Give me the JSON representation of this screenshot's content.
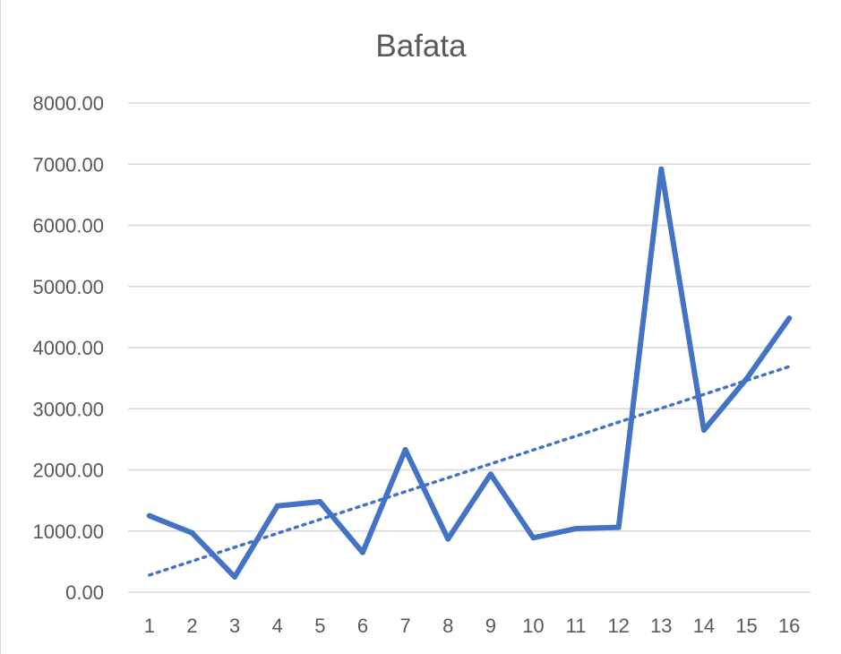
{
  "chart_data": {
    "type": "line",
    "title": "Bafata",
    "xlabel": "",
    "ylabel": "",
    "categories": [
      "1",
      "2",
      "3",
      "4",
      "5",
      "6",
      "7",
      "8",
      "9",
      "10",
      "11",
      "12",
      "13",
      "14",
      "15",
      "16"
    ],
    "series": [
      {
        "values": [
          1250,
          970,
          250,
          1410,
          1480,
          650,
          2330,
          870,
          1930,
          890,
          1040,
          1060,
          6920,
          2650,
          3490,
          4480
        ]
      }
    ],
    "trendline": {
      "type": "linear",
      "style": "dotted",
      "from": 280,
      "to": 3690
    },
    "ylim": [
      0,
      8000
    ],
    "yticks": [
      "0.00",
      "1000.00",
      "2000.00",
      "3000.00",
      "4000.00",
      "5000.00",
      "6000.00",
      "7000.00",
      "8000.00"
    ],
    "grid": true,
    "legend": "none",
    "colors": {
      "line": "#4472C4",
      "grid": "#d9d9d9",
      "text": "#595959"
    }
  }
}
